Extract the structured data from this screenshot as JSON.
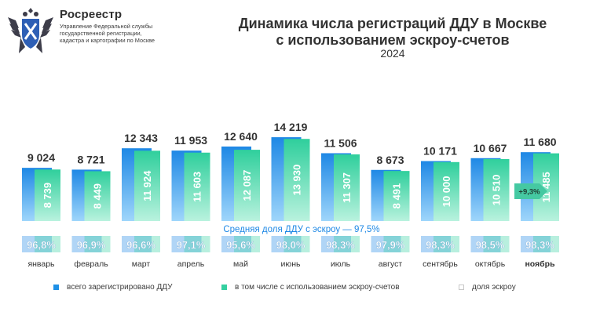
{
  "header": {
    "org_name": "Росреестр",
    "org_desc_lines": [
      "Управление Федеральной службы",
      "государственной регистрации,",
      "кадастра и картографии по Москве"
    ],
    "logo_icon": "double-headed-eagle-emblem-icon"
  },
  "chart_data": {
    "type": "bar",
    "title_lines": [
      "Динамика числа регистраций ДДУ в Москве",
      "с использованием эскроу-счетов"
    ],
    "subtitle": "2024",
    "categories": [
      "январь",
      "февраль",
      "март",
      "апрель",
      "май",
      "июнь",
      "июль",
      "август",
      "сентябрь",
      "октябрь",
      "ноябрь"
    ],
    "series": [
      {
        "name": "всего зарегистрировано ДДУ",
        "values": [
          9024,
          8721,
          12343,
          11953,
          12640,
          14219,
          11506,
          8673,
          10171,
          10667,
          11680
        ],
        "labels": [
          "9 024",
          "8 721",
          "12 343",
          "11 953",
          "12 640",
          "14 219",
          "11 506",
          "8 673",
          "10 171",
          "10 667",
          "11 680"
        ]
      },
      {
        "name": "в том числе с использованием эскроу-счетов",
        "values": [
          8739,
          8449,
          11924,
          11603,
          12087,
          13930,
          11307,
          8491,
          10000,
          10510,
          11485
        ],
        "labels": [
          "8 739",
          "8 449",
          "11 924",
          "11 603",
          "12 087",
          "13 930",
          "11 307",
          "8 491",
          "10 000",
          "10 510",
          "11 485"
        ]
      }
    ],
    "share_series": {
      "name": "доля эскроу",
      "values": [
        96.8,
        96.9,
        96.6,
        97.1,
        95.6,
        98.0,
        98.3,
        97.9,
        98.3,
        98.5,
        98.3
      ],
      "labels": [
        "96,8%",
        "96,9%",
        "96,6%",
        "97,1%",
        "95,6%",
        "98,0%",
        "98,3%",
        "97,9%",
        "98,3%",
        "98,5%",
        "98,3%"
      ]
    },
    "annotations": {
      "average_share": "Средняя доля ДДУ с эскроу — 97,5%",
      "growth_badge": "+9,3%",
      "highlighted_category": "ноябрь"
    },
    "ylim": [
      0,
      16000
    ],
    "grid": false,
    "legend_position": "bottom",
    "colors": {
      "total": "#1e90e6",
      "escrow": "#35d0a0",
      "share_box": "#ffffff",
      "average_text": "#1e88e5",
      "share_text": "#ffffff",
      "badge": "#45c9a2"
    }
  }
}
